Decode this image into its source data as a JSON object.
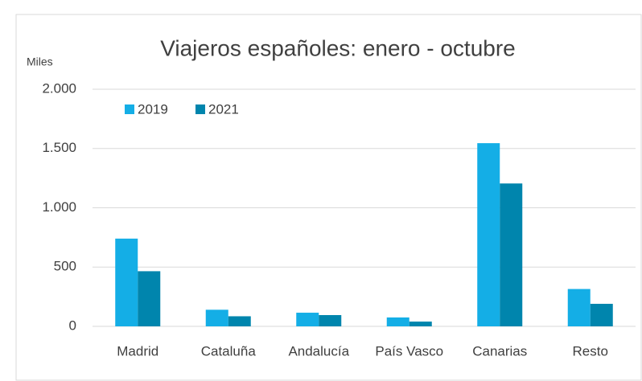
{
  "chart_data": {
    "type": "bar",
    "title": "Viajeros españoles: enero - octubre",
    "y_label": "Miles",
    "categories": [
      "Madrid",
      "Cataluña",
      "Andalucía",
      "País Vasco",
      "Canarias",
      "Resto"
    ],
    "series": [
      {
        "name": "2019",
        "color": "#14aee6",
        "values": [
          740,
          140,
          115,
          75,
          1545,
          315
        ]
      },
      {
        "name": "2021",
        "color": "#0085ad",
        "values": [
          465,
          85,
          95,
          40,
          1205,
          190
        ]
      }
    ],
    "ylim": [
      0,
      2000
    ],
    "yticks": [
      0,
      500,
      {
        "value": 1000,
        "label": "1.000"
      },
      {
        "value": 1500,
        "label": "1.500"
      },
      {
        "value": 2000,
        "label": "2.000"
      }
    ],
    "grid": true,
    "legend": "top-left"
  }
}
